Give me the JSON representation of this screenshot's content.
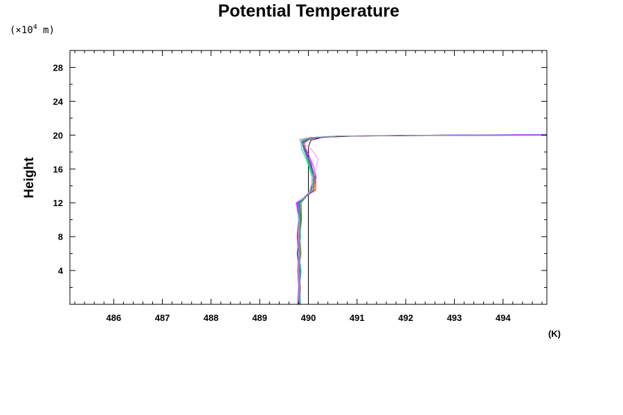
{
  "chart_data": {
    "type": "line",
    "title": "Potential Temperature",
    "ylabel": "Height",
    "yunit_prefix": "(×10",
    "yunit_exponent": "4",
    "yunit_suffix": " m)",
    "xunit": "(K)",
    "xlim": [
      485.1,
      494.9
    ],
    "ylim": [
      0,
      30
    ],
    "xticks": [
      486,
      487,
      488,
      489,
      490,
      491,
      492,
      493,
      494
    ],
    "yticks": [
      4,
      8,
      12,
      16,
      20,
      24,
      28
    ],
    "grid": false,
    "legend": "none",
    "series": [
      {
        "color": "#000000",
        "points": [
          [
            490.0,
            0
          ],
          [
            490.0,
            5
          ],
          [
            490.0,
            10
          ],
          [
            490.0,
            13
          ],
          [
            490.0,
            16
          ],
          [
            490.0,
            18.6
          ],
          [
            490.05,
            19.4
          ],
          [
            490.3,
            19.75
          ],
          [
            491,
            19.88
          ],
          [
            492.5,
            19.95
          ],
          [
            494.9,
            19.98
          ]
        ]
      },
      {
        "color": "#ff0000",
        "points": [
          [
            489.8,
            0
          ],
          [
            489.82,
            2
          ],
          [
            489.78,
            4
          ],
          [
            489.83,
            6
          ],
          [
            489.8,
            8
          ],
          [
            489.85,
            10
          ],
          [
            489.83,
            12
          ],
          [
            489.98,
            12.9
          ],
          [
            490.15,
            13.5
          ],
          [
            490.15,
            15
          ],
          [
            490.05,
            16.5
          ],
          [
            489.93,
            18.2
          ],
          [
            489.9,
            19.2
          ],
          [
            490.1,
            19.65
          ],
          [
            490.6,
            19.85
          ],
          [
            492,
            19.95
          ],
          [
            494.9,
            20.02
          ]
        ]
      },
      {
        "color": "#0000ff",
        "points": [
          [
            489.79,
            0
          ],
          [
            489.8,
            2
          ],
          [
            489.82,
            4
          ],
          [
            489.77,
            6
          ],
          [
            489.82,
            8
          ],
          [
            489.8,
            10
          ],
          [
            489.79,
            12
          ],
          [
            489.95,
            12.8
          ],
          [
            490.1,
            13.5
          ],
          [
            490.12,
            15
          ],
          [
            490.02,
            16.8
          ],
          [
            489.9,
            18.4
          ],
          [
            489.88,
            19.3
          ],
          [
            490.1,
            19.7
          ],
          [
            490.6,
            19.88
          ],
          [
            492,
            19.98
          ],
          [
            494.9,
            20.05
          ]
        ]
      },
      {
        "color": "#00aa00",
        "points": [
          [
            489.82,
            0
          ],
          [
            489.84,
            2
          ],
          [
            489.8,
            4
          ],
          [
            489.85,
            6
          ],
          [
            489.82,
            8
          ],
          [
            489.86,
            10
          ],
          [
            489.85,
            12
          ],
          [
            489.98,
            12.9
          ],
          [
            490.12,
            13.6
          ],
          [
            490.1,
            15
          ],
          [
            490.02,
            16.6
          ],
          [
            489.92,
            18.3
          ],
          [
            489.88,
            19.2
          ],
          [
            490.08,
            19.65
          ],
          [
            490.6,
            19.86
          ],
          [
            492,
            19.96
          ],
          [
            494.9,
            20.0
          ]
        ]
      },
      {
        "color": "#ff00ff",
        "points": [
          [
            489.8,
            0
          ],
          [
            489.83,
            2
          ],
          [
            489.79,
            4
          ],
          [
            489.82,
            6
          ],
          [
            489.78,
            8
          ],
          [
            489.82,
            10
          ],
          [
            489.78,
            12
          ],
          [
            489.92,
            12.6
          ],
          [
            490.1,
            13.4
          ],
          [
            490.16,
            15
          ],
          [
            490.1,
            16.4
          ],
          [
            489.98,
            18
          ],
          [
            489.9,
            19.0
          ],
          [
            490.05,
            19.6
          ],
          [
            490.6,
            19.85
          ],
          [
            492,
            19.97
          ],
          [
            494.9,
            20.08
          ]
        ]
      },
      {
        "color": "#00c8c8",
        "points": [
          [
            489.84,
            0
          ],
          [
            489.82,
            2
          ],
          [
            489.85,
            4
          ],
          [
            489.8,
            6
          ],
          [
            489.84,
            8
          ],
          [
            489.82,
            10
          ],
          [
            489.8,
            12
          ],
          [
            489.94,
            12.8
          ],
          [
            490.05,
            13.6
          ],
          [
            490.08,
            15
          ],
          [
            489.98,
            16.8
          ],
          [
            489.86,
            18.4
          ],
          [
            489.84,
            19.4
          ],
          [
            490.0,
            19.7
          ],
          [
            490.5,
            19.86
          ],
          [
            492,
            19.96
          ],
          [
            494.9,
            20.03
          ]
        ]
      },
      {
        "color": "#ff8800",
        "points": [
          [
            489.81,
            0
          ],
          [
            489.84,
            2
          ],
          [
            489.8,
            4
          ],
          [
            489.84,
            6
          ],
          [
            489.8,
            8
          ],
          [
            489.84,
            10
          ],
          [
            489.82,
            12
          ],
          [
            489.97,
            12.9
          ],
          [
            490.12,
            13.5
          ],
          [
            490.14,
            15
          ],
          [
            490.05,
            16.5
          ],
          [
            489.95,
            18.2
          ],
          [
            489.92,
            19.2
          ],
          [
            490.1,
            19.68
          ],
          [
            490.6,
            19.87
          ],
          [
            492,
            19.96
          ],
          [
            494.9,
            20.0
          ]
        ]
      },
      {
        "color": "#8800ff",
        "points": [
          [
            489.78,
            0
          ],
          [
            489.8,
            2
          ],
          [
            489.78,
            4
          ],
          [
            489.8,
            6
          ],
          [
            489.77,
            8
          ],
          [
            489.8,
            10
          ],
          [
            489.76,
            12
          ],
          [
            489.9,
            12.6
          ],
          [
            490.05,
            13.4
          ],
          [
            490.12,
            15
          ],
          [
            490.06,
            16.6
          ],
          [
            489.94,
            18.2
          ],
          [
            489.88,
            19.1
          ],
          [
            490.05,
            19.62
          ],
          [
            490.6,
            19.86
          ],
          [
            492,
            19.97
          ],
          [
            494.9,
            20.06
          ]
        ]
      },
      {
        "color": "#00ff00",
        "points": [
          [
            489.83,
            0
          ],
          [
            489.81,
            2
          ],
          [
            489.83,
            4
          ],
          [
            489.79,
            6
          ],
          [
            489.83,
            8
          ],
          [
            489.8,
            10
          ],
          [
            489.82,
            12
          ],
          [
            489.96,
            12.8
          ],
          [
            490.08,
            13.6
          ],
          [
            490.1,
            15
          ],
          [
            490.0,
            16.7
          ],
          [
            489.9,
            18.4
          ],
          [
            489.86,
            19.3
          ],
          [
            490.02,
            19.7
          ],
          [
            490.5,
            19.87
          ],
          [
            492,
            19.96
          ],
          [
            494.9,
            20.01
          ]
        ]
      },
      {
        "color": "#0088ff",
        "points": [
          [
            489.8,
            0
          ],
          [
            489.82,
            2
          ],
          [
            489.84,
            4
          ],
          [
            489.8,
            6
          ],
          [
            489.82,
            8
          ],
          [
            489.83,
            10
          ],
          [
            489.81,
            12
          ],
          [
            489.95,
            12.7
          ],
          [
            490.1,
            13.5
          ],
          [
            490.13,
            15
          ],
          [
            490.04,
            16.6
          ],
          [
            489.92,
            18.3
          ],
          [
            489.9,
            19.2
          ],
          [
            490.06,
            19.66
          ],
          [
            490.6,
            19.86
          ],
          [
            492,
            19.97
          ],
          [
            494.9,
            20.04
          ]
        ]
      },
      {
        "color": "#ff88ff",
        "points": [
          [
            489.79,
            0
          ],
          [
            489.81,
            2
          ],
          [
            489.79,
            4
          ],
          [
            489.81,
            6
          ],
          [
            489.79,
            8
          ],
          [
            489.81,
            10
          ],
          [
            489.74,
            12
          ],
          [
            489.88,
            12.5
          ],
          [
            490.02,
            13.3
          ],
          [
            490.1,
            15
          ],
          [
            490.16,
            16.2
          ],
          [
            490.2,
            17.2
          ],
          [
            490.05,
            18.4
          ],
          [
            489.85,
            19.1
          ],
          [
            489.82,
            19.5
          ],
          [
            490.0,
            19.7
          ],
          [
            490.6,
            19.87
          ],
          [
            492,
            19.97
          ],
          [
            494.9,
            20.02
          ]
        ]
      },
      {
        "color": "#888888",
        "points": [
          [
            489.82,
            0
          ],
          [
            489.83,
            2
          ],
          [
            489.81,
            4
          ],
          [
            489.83,
            6
          ],
          [
            489.81,
            8
          ],
          [
            489.84,
            10
          ],
          [
            489.83,
            12
          ],
          [
            489.96,
            12.85
          ],
          [
            490.1,
            13.55
          ],
          [
            490.11,
            15
          ],
          [
            490.02,
            16.7
          ],
          [
            489.9,
            18.3
          ],
          [
            489.86,
            19.25
          ],
          [
            490.04,
            19.68
          ],
          [
            490.55,
            19.86
          ],
          [
            492,
            19.96
          ],
          [
            494.9,
            20.0
          ]
        ]
      }
    ]
  }
}
